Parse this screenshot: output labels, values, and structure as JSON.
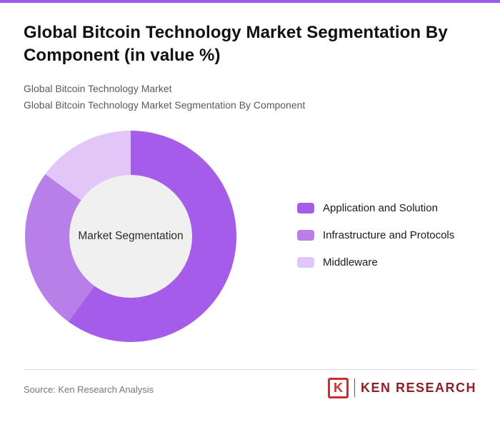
{
  "page": {
    "title": "Global Bitcoin Technology Market Segmentation By Component (in value %)",
    "subtitle_line1": "Global Bitcoin Technology Market",
    "subtitle_line2": "Global Bitcoin Technology Market Segmentation By Component",
    "source": "Source: Ken Research Analysis",
    "accent_bar_color": "#9b59f0"
  },
  "chart_data": {
    "type": "pie",
    "variant": "donut",
    "title": "Global Bitcoin Technology Market Segmentation By Component (in value %)",
    "center_label": "Market Segmentation",
    "labels": [
      "Application and Solution",
      "Infrastructure and Protocols",
      "Middleware"
    ],
    "values": [
      60,
      25,
      15
    ],
    "unit": "%",
    "colors": [
      "#a55ce8",
      "#b97fe8",
      "#e2c6f7"
    ],
    "center_fill": "#f0f0f0",
    "start_angle_deg": 0,
    "direction": "clockwise",
    "legend_position": "right",
    "data_labels_shown": false
  },
  "logo": {
    "emblem_letter": "K",
    "text": "Ken Research",
    "color": "#8f2026"
  }
}
